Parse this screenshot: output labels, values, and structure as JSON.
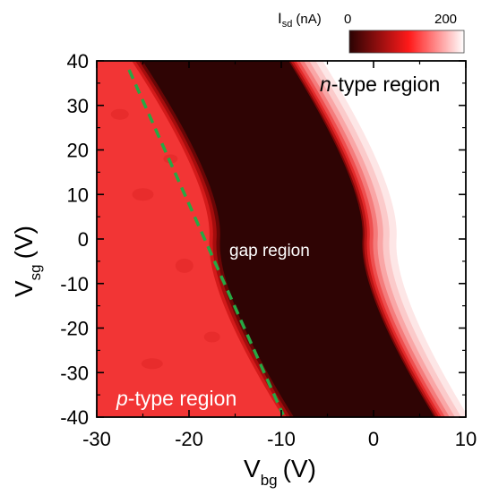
{
  "chart_data": {
    "type": "heatmap",
    "title": "",
    "x": {
      "label": "V",
      "label_subscript": "bg",
      "unit": "(V)",
      "range": [
        -30,
        10
      ],
      "ticks": [
        -30,
        -20,
        -10,
        0,
        10
      ],
      "tick_labels": [
        "-30",
        "-20",
        "-10",
        "0",
        "10"
      ]
    },
    "y": {
      "label": "V",
      "label_subscript": "sg",
      "unit": "(V)",
      "range": [
        -40,
        40
      ],
      "ticks": [
        40,
        30,
        20,
        10,
        0,
        -10,
        -20,
        -30,
        -40
      ],
      "tick_labels": [
        "40",
        "30",
        "20",
        "10",
        "0",
        "-10",
        "-20",
        "-30",
        "-40"
      ]
    },
    "colorbar": {
      "label": "I",
      "label_subscript": "sd",
      "unit": "(nA)",
      "min": 0,
      "max": 200,
      "min_label": "0",
      "max_label": "200",
      "placement": "top-right",
      "colors": [
        "#2a0303",
        "#ff1a1a",
        "#ffffff"
      ]
    },
    "regions": [
      {
        "name": "p-type",
        "label_italic": "p",
        "label_rest": "-type region",
        "current_nA": 150,
        "color": "#f23535",
        "boundary": [
          [
            -26.2,
            40
          ],
          [
            -17.8,
            0
          ],
          [
            -9.8,
            -40
          ]
        ]
      },
      {
        "name": "gap",
        "label": "gap region",
        "current_nA": 0,
        "color": "#2f0404",
        "boundary": [
          [
            -9.2,
            40
          ],
          [
            -1.2,
            0
          ],
          [
            6.6,
            -40
          ]
        ]
      },
      {
        "name": "n-type",
        "label_italic": "n",
        "label_rest": "-type region",
        "current_nA": 200,
        "color": "#ffffff"
      }
    ],
    "dashed_line": {
      "color": "#27a844",
      "points": [
        [
          -26.5,
          38
        ],
        [
          -9.8,
          -39.5
        ]
      ]
    }
  }
}
